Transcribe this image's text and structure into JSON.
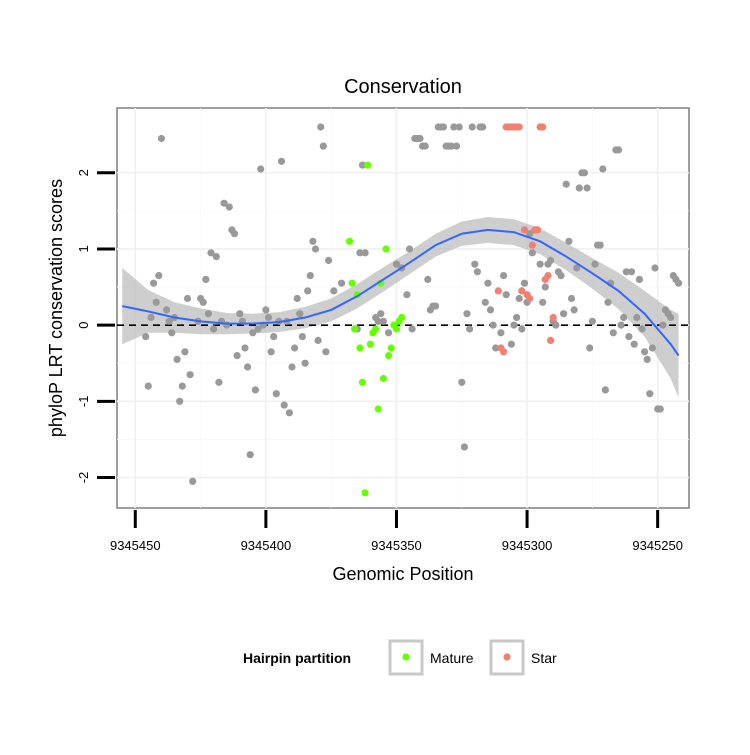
{
  "chart_data": {
    "type": "scatter",
    "title": "Conservation",
    "xlabel": "Genomic Position",
    "ylabel": "phyloP LRT conservation scores",
    "x_reversed": true,
    "xlim": [
      9345457,
      9345238
    ],
    "ylim": [
      -2.4,
      2.85
    ],
    "x_ticks": [
      9345450,
      9345400,
      9345350,
      9345300,
      9345250
    ],
    "x_tick_labels": [
      "9345450",
      "9345400",
      "9345350",
      "9345300",
      "9345250"
    ],
    "y_ticks": [
      -2,
      -1,
      0,
      1,
      2
    ],
    "y_tick_labels": [
      "-2",
      "-1",
      "0",
      "1",
      "2"
    ],
    "grid": true,
    "reference_line": {
      "y": 0,
      "style": "dashed",
      "color": "#000000"
    },
    "legend": {
      "title": "Hairpin partition",
      "position": "bottom",
      "entries": [
        {
          "label": "Mature",
          "color": "#66ff00"
        },
        {
          "label": "Star",
          "color": "#f08070"
        }
      ]
    },
    "colors": {
      "other": "#999999",
      "smooth": "#3366ff",
      "band": "#bdbdbd"
    },
    "series": [
      {
        "key": "other",
        "points": [
          [
            9345446,
            -0.15
          ],
          [
            9345445,
            -0.8
          ],
          [
            9345444,
            0.1
          ],
          [
            9345443,
            0.55
          ],
          [
            9345442,
            0.3
          ],
          [
            9345441,
            0.65
          ],
          [
            9345440,
            2.45
          ],
          [
            9345438,
            0.2
          ],
          [
            9345437,
            0.05
          ],
          [
            9345436,
            -0.1
          ],
          [
            9345435,
            0.1
          ],
          [
            9345434,
            -0.45
          ],
          [
            9345433,
            -1.0
          ],
          [
            9345432,
            -0.8
          ],
          [
            9345431,
            -0.35
          ],
          [
            9345430,
            0.35
          ],
          [
            9345429,
            -0.65
          ],
          [
            9345428,
            -2.05
          ],
          [
            9345426,
            0.05
          ],
          [
            9345425,
            0.35
          ],
          [
            9345424,
            0.3
          ],
          [
            9345423,
            0.6
          ],
          [
            9345422,
            0.15
          ],
          [
            9345421,
            0.95
          ],
          [
            9345420,
            -0.05
          ],
          [
            9345419,
            0.9
          ],
          [
            9345418,
            -0.75
          ],
          [
            9345417,
            0.05
          ],
          [
            9345416,
            1.6
          ],
          [
            9345415,
            0.0
          ],
          [
            9345414,
            1.55
          ],
          [
            9345413,
            1.25
          ],
          [
            9345412,
            1.2
          ],
          [
            9345411,
            -0.4
          ],
          [
            9345410,
            0.15
          ],
          [
            9345409,
            0.05
          ],
          [
            9345408,
            -0.3
          ],
          [
            9345407,
            -0.55
          ],
          [
            9345406,
            -1.7
          ],
          [
            9345405,
            -0.1
          ],
          [
            9345404,
            -0.85
          ],
          [
            9345403,
            -0.05
          ],
          [
            9345402,
            2.05
          ],
          [
            9345401,
            0.0
          ],
          [
            9345400,
            0.2
          ],
          [
            9345399,
            0.1
          ],
          [
            9345398,
            -0.35
          ],
          [
            9345397,
            -0.15
          ],
          [
            9345396,
            -0.9
          ],
          [
            9345395,
            0.05
          ],
          [
            9345394,
            2.15
          ],
          [
            9345393,
            -1.05
          ],
          [
            9345392,
            0.05
          ],
          [
            9345391,
            -1.15
          ],
          [
            9345390,
            -0.55
          ],
          [
            9345389,
            -0.3
          ],
          [
            9345388,
            0.35
          ],
          [
            9345387,
            0.15
          ],
          [
            9345386,
            -0.15
          ],
          [
            9345385,
            -0.5
          ],
          [
            9345384,
            0.45
          ],
          [
            9345383,
            0.65
          ],
          [
            9345382,
            1.1
          ],
          [
            9345381,
            1.0
          ],
          [
            9345380,
            -0.2
          ],
          [
            9345379,
            2.6
          ],
          [
            9345378,
            2.35
          ],
          [
            9345377,
            -0.35
          ],
          [
            9345376,
            0.85
          ],
          [
            9345374,
            0.45
          ],
          [
            9345371,
            0.55
          ],
          [
            9345365,
            -0.05
          ],
          [
            9345364,
            0.95
          ],
          [
            9345363,
            2.1
          ],
          [
            9345362,
            0.95
          ],
          [
            9345358,
            0.1
          ],
          [
            9345357,
            0.05
          ],
          [
            9345356,
            0.15
          ],
          [
            9345355,
            0.05
          ],
          [
            9345353,
            -0.1
          ],
          [
            9345350,
            0.8
          ],
          [
            9345348,
            0.75
          ],
          [
            9345346,
            0.4
          ],
          [
            9345345,
            1.0
          ],
          [
            9345344,
            -0.05
          ],
          [
            9345343,
            2.45
          ],
          [
            9345342,
            2.45
          ],
          [
            9345341,
            2.45
          ],
          [
            9345340,
            2.35
          ],
          [
            9345339,
            2.35
          ],
          [
            9345338,
            0.6
          ],
          [
            9345337,
            0.2
          ],
          [
            9345336,
            0.25
          ],
          [
            9345335,
            0.25
          ],
          [
            9345334,
            2.6
          ],
          [
            9345333,
            2.6
          ],
          [
            9345332,
            2.6
          ],
          [
            9345331,
            2.35
          ],
          [
            9345330,
            2.35
          ],
          [
            9345329,
            2.35
          ],
          [
            9345328,
            2.6
          ],
          [
            9345327,
            2.35
          ],
          [
            9345326,
            2.6
          ],
          [
            9345325,
            -0.75
          ],
          [
            9345324,
            -1.6
          ],
          [
            9345323,
            0.15
          ],
          [
            9345322,
            -0.05
          ],
          [
            9345321,
            2.6
          ],
          [
            9345320,
            0.8
          ],
          [
            9345319,
            0.7
          ],
          [
            9345318,
            2.6
          ],
          [
            9345317,
            2.6
          ],
          [
            9345316,
            0.3
          ],
          [
            9345315,
            0.55
          ],
          [
            9345314,
            0.2
          ],
          [
            9345313,
            0.0
          ],
          [
            9345312,
            -0.3
          ],
          [
            9345310,
            -0.1
          ],
          [
            9345309,
            0.65
          ],
          [
            9345308,
            0.4
          ],
          [
            9345306,
            -0.25
          ],
          [
            9345305,
            0.0
          ],
          [
            9345304,
            0.1
          ],
          [
            9345303,
            0.35
          ],
          [
            9345302,
            -0.05
          ],
          [
            9345301,
            0.55
          ],
          [
            9345300,
            0.3
          ],
          [
            9345299,
            1.2
          ],
          [
            9345298,
            0.95
          ],
          [
            9345296,
            1.25
          ],
          [
            9345295,
            0.8
          ],
          [
            9345294,
            0.3
          ],
          [
            9345293,
            0.5
          ],
          [
            9345292,
            0.8
          ],
          [
            9345291,
            0.85
          ],
          [
            9345290,
            0.05
          ],
          [
            9345289,
            0.0
          ],
          [
            9345288,
            0.7
          ],
          [
            9345287,
            0.65
          ],
          [
            9345286,
            0.15
          ],
          [
            9345285,
            1.85
          ],
          [
            9345284,
            1.1
          ],
          [
            9345283,
            0.35
          ],
          [
            9345282,
            0.2
          ],
          [
            9345281,
            0.75
          ],
          [
            9345280,
            1.8
          ],
          [
            9345279,
            2.0
          ],
          [
            9345278,
            2.0
          ],
          [
            9345277,
            1.8
          ],
          [
            9345276,
            -0.3
          ],
          [
            9345275,
            0.05
          ],
          [
            9345274,
            0.8
          ],
          [
            9345273,
            1.05
          ],
          [
            9345272,
            1.05
          ],
          [
            9345271,
            2.05
          ],
          [
            9345270,
            -0.85
          ],
          [
            9345269,
            0.3
          ],
          [
            9345268,
            0.55
          ],
          [
            9345267,
            -0.1
          ],
          [
            9345266,
            2.3
          ],
          [
            9345265,
            2.3
          ],
          [
            9345264,
            0.0
          ],
          [
            9345263,
            0.1
          ],
          [
            9345262,
            0.7
          ],
          [
            9345261,
            -0.15
          ],
          [
            9345260,
            0.7
          ],
          [
            9345259,
            -0.25
          ],
          [
            9345258,
            0.1
          ],
          [
            9345257,
            0.6
          ],
          [
            9345256,
            -0.05
          ],
          [
            9345255,
            -0.35
          ],
          [
            9345254,
            -0.45
          ],
          [
            9345253,
            -0.9
          ],
          [
            9345252,
            -0.3
          ],
          [
            9345251,
            0.75
          ],
          [
            9345250,
            -1.1
          ],
          [
            9345249,
            -1.1
          ],
          [
            9345248,
            0.0
          ],
          [
            9345247,
            0.2
          ],
          [
            9345246,
            0.15
          ],
          [
            9345245,
            0.1
          ],
          [
            9345244,
            0.65
          ],
          [
            9345243,
            0.6
          ],
          [
            9345242,
            0.55
          ]
        ]
      },
      {
        "key": "mature",
        "name": "Mature",
        "points": [
          [
            9345368,
            1.1
          ],
          [
            9345367,
            0.55
          ],
          [
            9345366,
            -0.05
          ],
          [
            9345365,
            0.4
          ],
          [
            9345364,
            -0.3
          ],
          [
            9345363,
            -0.75
          ],
          [
            9345362,
            -2.2
          ],
          [
            9345361,
            2.1
          ],
          [
            9345360,
            -0.25
          ],
          [
            9345359,
            -0.1
          ],
          [
            9345358,
            -0.05
          ],
          [
            9345357,
            -1.1
          ],
          [
            9345356,
            0.55
          ],
          [
            9345355,
            -0.7
          ],
          [
            9345354,
            1.0
          ],
          [
            9345353,
            -0.4
          ],
          [
            9345352,
            -0.3
          ],
          [
            9345351,
            0.0
          ],
          [
            9345350,
            -0.05
          ],
          [
            9345349,
            0.05
          ],
          [
            9345348,
            0.1
          ]
        ]
      },
      {
        "key": "star",
        "name": "Star",
        "points": [
          [
            9345311,
            0.45
          ],
          [
            9345310,
            -0.3
          ],
          [
            9345309,
            -0.35
          ],
          [
            9345308,
            2.6
          ],
          [
            9345307,
            2.6
          ],
          [
            9345306,
            2.6
          ],
          [
            9345305,
            2.6
          ],
          [
            9345304,
            2.6
          ],
          [
            9345303,
            2.6
          ],
          [
            9345302,
            0.45
          ],
          [
            9345301,
            1.25
          ],
          [
            9345300,
            0.4
          ],
          [
            9345299,
            0.35
          ],
          [
            9345298,
            1.05
          ],
          [
            9345297,
            1.25
          ],
          [
            9345296,
            1.25
          ],
          [
            9345295,
            2.6
          ],
          [
            9345294,
            2.6
          ],
          [
            9345293,
            0.6
          ],
          [
            9345292,
            0.65
          ],
          [
            9345291,
            -0.2
          ],
          [
            9345290,
            0.1
          ]
        ]
      }
    ],
    "smooth": {
      "x": [
        9345455,
        9345445,
        9345435,
        9345425,
        9345415,
        9345405,
        9345395,
        9345385,
        9345375,
        9345365,
        9345355,
        9345345,
        9345335,
        9345325,
        9345315,
        9345305,
        9345295,
        9345285,
        9345275,
        9345265,
        9345255,
        9345245,
        9345242
      ],
      "y": [
        0.25,
        0.18,
        0.1,
        0.05,
        0.02,
        0.02,
        0.04,
        0.1,
        0.2,
        0.38,
        0.6,
        0.82,
        1.05,
        1.2,
        1.25,
        1.22,
        1.1,
        0.9,
        0.68,
        0.45,
        0.15,
        -0.25,
        -0.4
      ],
      "se": [
        0.5,
        0.28,
        0.2,
        0.17,
        0.14,
        0.13,
        0.13,
        0.14,
        0.15,
        0.16,
        0.16,
        0.15,
        0.15,
        0.16,
        0.17,
        0.17,
        0.17,
        0.18,
        0.2,
        0.24,
        0.3,
        0.45,
        0.55
      ]
    }
  }
}
